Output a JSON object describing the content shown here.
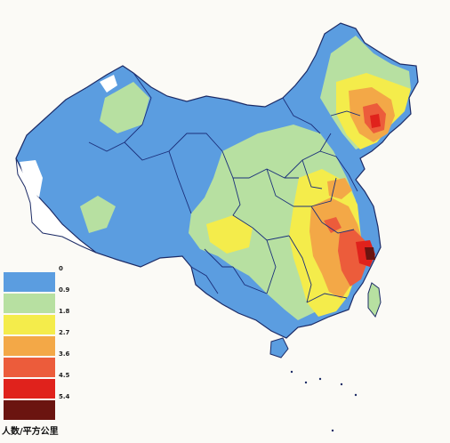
{
  "legend": {
    "caption": "人数/平方公里",
    "colors": [
      "#5b9de0",
      "#b7e0a1",
      "#f4ec4b",
      "#f3a847",
      "#ec5c3b",
      "#e0221c",
      "#6b1410"
    ],
    "ticks": [
      "0",
      "0.9",
      "1.8",
      "2.7",
      "3.6",
      "4.5",
      "5.4"
    ]
  },
  "map": {
    "base_color": "#5b9de0",
    "border_color": "#1b2f7a",
    "outline_color": "#1c2b66"
  }
}
